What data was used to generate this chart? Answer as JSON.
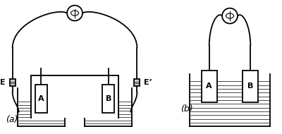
{
  "bg_color": "#ffffff",
  "line_color": "#000000",
  "label_a": "A",
  "label_b": "B",
  "label_E": "E",
  "label_Eprime": "E’",
  "label_a_fig": "(a)",
  "label_b_fig": "(b)"
}
